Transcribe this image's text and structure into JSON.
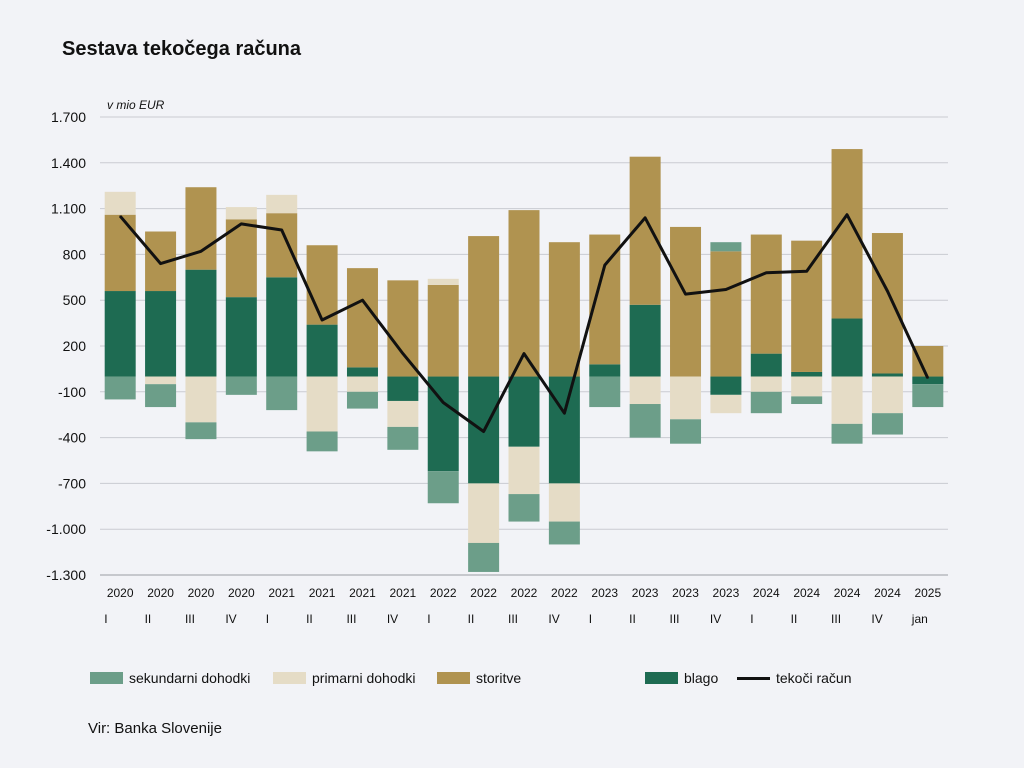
{
  "chart_data": {
    "type": "bar",
    "stacked": true,
    "title": "Sestava tekočega računa",
    "unit_label": "v mio EUR",
    "source": "Vir: Banka Slovenije",
    "ylim": [
      -1300,
      1700
    ],
    "yticks": [
      1700,
      1400,
      1100,
      800,
      500,
      200,
      -100,
      -400,
      -700,
      -1000,
      -1300
    ],
    "ytick_labels": [
      "1.700",
      "1.400",
      "1.100",
      "800",
      "500",
      "200",
      "-100",
      "-400",
      "-700",
      "-1.000",
      "-1.300"
    ],
    "grid": true,
    "legend_position": "bottom",
    "categories": [
      {
        "year": "2020",
        "period": "I"
      },
      {
        "year": "2020",
        "period": "II"
      },
      {
        "year": "2020",
        "period": "III"
      },
      {
        "year": "2020",
        "period": "IV"
      },
      {
        "year": "2021",
        "period": "I"
      },
      {
        "year": "2021",
        "period": "II"
      },
      {
        "year": "2021",
        "period": "III"
      },
      {
        "year": "2021",
        "period": "IV"
      },
      {
        "year": "2022",
        "period": "I"
      },
      {
        "year": "2022",
        "period": "II"
      },
      {
        "year": "2022",
        "period": "III"
      },
      {
        "year": "2022",
        "period": "IV"
      },
      {
        "year": "2023",
        "period": "I"
      },
      {
        "year": "2023",
        "period": "II"
      },
      {
        "year": "2023",
        "period": "III"
      },
      {
        "year": "2023",
        "period": "IV"
      },
      {
        "year": "2024",
        "period": "I"
      },
      {
        "year": "2024",
        "period": "II"
      },
      {
        "year": "2024",
        "period": "III"
      },
      {
        "year": "2024",
        "period": "IV"
      },
      {
        "year": "2025",
        "period": "jan"
      }
    ],
    "series": [
      {
        "name": "blago",
        "color": "#1e6b52",
        "values": [
          560,
          560,
          700,
          520,
          650,
          340,
          60,
          -160,
          -620,
          -700,
          -460,
          -700,
          80,
          470,
          0,
          -120,
          150,
          30,
          380,
          20,
          -50
        ]
      },
      {
        "name": "storitve",
        "color": "#b09350",
        "values": [
          500,
          390,
          540,
          510,
          420,
          520,
          650,
          630,
          600,
          920,
          1090,
          880,
          850,
          970,
          980,
          820,
          780,
          860,
          1110,
          920,
          200
        ]
      },
      {
        "name": "primarni dohodki",
        "color": "#e5dcc6",
        "values": [
          150,
          -50,
          -300,
          80,
          120,
          -360,
          -100,
          -170,
          40,
          -390,
          -310,
          -250,
          0,
          -180,
          -280,
          -120,
          -100,
          -130,
          -310,
          -240,
          0
        ]
      },
      {
        "name": "sekundarni dohodki",
        "color": "#6c9e89",
        "values": [
          -150,
          -150,
          -110,
          -120,
          -220,
          -130,
          -110,
          -150,
          -210,
          -190,
          -180,
          -150,
          -200,
          -220,
          -160,
          60,
          -140,
          -50,
          -130,
          -140,
          -150
        ]
      }
    ],
    "line": {
      "name": "tekoči račun",
      "color": "#111111",
      "values": [
        1050,
        740,
        820,
        1000,
        960,
        370,
        500,
        150,
        -170,
        -360,
        150,
        -240,
        730,
        1040,
        540,
        570,
        680,
        690,
        1060,
        560,
        -10
      ]
    },
    "legend": [
      {
        "key": "sekundarni dohodki",
        "label": "sekundarni dohodki"
      },
      {
        "key": "primarni dohodki",
        "label": "primarni dohodki"
      },
      {
        "key": "storitve",
        "label": "storitve"
      },
      {
        "key": "blago",
        "label": "blago"
      },
      {
        "key": "tekoči račun",
        "label": "tekoči račun"
      }
    ]
  }
}
